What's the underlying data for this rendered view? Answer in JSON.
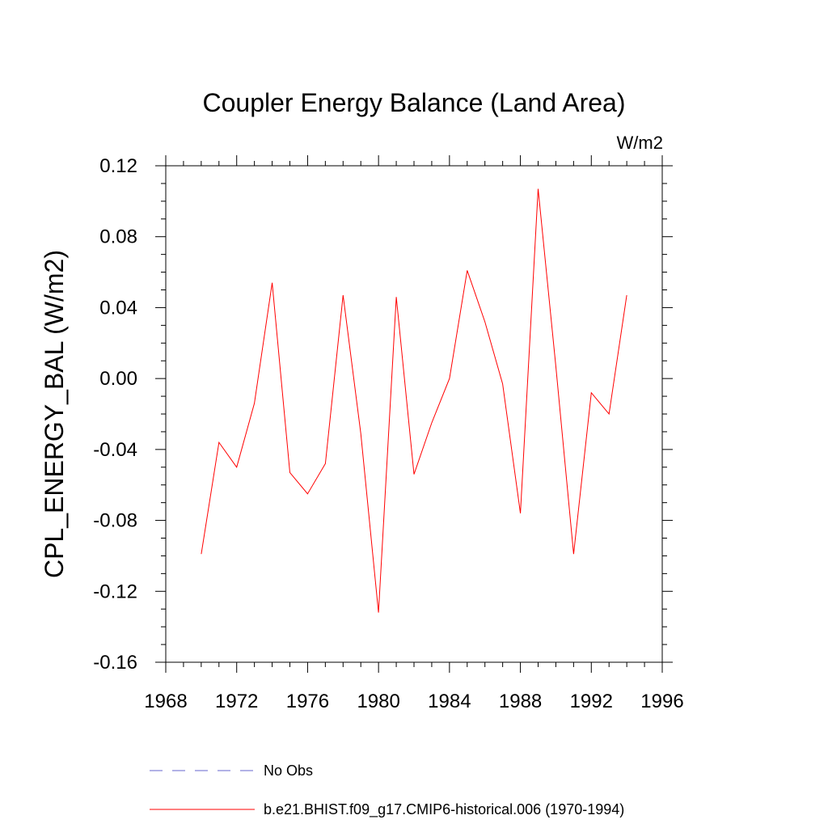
{
  "chart_data": {
    "type": "line",
    "title": "Coupler Energy Balance (Land Area)",
    "units_label": "W/m2",
    "ylabel": "CPL_ENERGY_BAL  (W/m2)",
    "xlabel": "",
    "xlim": [
      1968,
      1996
    ],
    "ylim": [
      -0.16,
      0.12
    ],
    "x_ticks": [
      1968,
      1972,
      1976,
      1980,
      1984,
      1988,
      1992,
      1996
    ],
    "x_tick_labels": [
      "1968",
      "1972",
      "1976",
      "1980",
      "1984",
      "1988",
      "1992",
      "1996"
    ],
    "y_ticks": [
      -0.16,
      -0.12,
      -0.08,
      -0.04,
      0.0,
      0.04,
      0.08,
      0.12
    ],
    "y_tick_labels": [
      "-0.16",
      "-0.12",
      "-0.08",
      "-0.04",
      "0.00",
      "0.04",
      "0.08",
      "0.12"
    ],
    "grid": false,
    "series": [
      {
        "name": "b.e21.BHIST.f09_g17.CMIP6-historical.006 (1970-1994)",
        "color": "#ff0000",
        "style": "solid",
        "x": [
          1970,
          1971,
          1972,
          1973,
          1974,
          1975,
          1976,
          1977,
          1978,
          1979,
          1980,
          1981,
          1982,
          1983,
          1984,
          1985,
          1986,
          1987,
          1988,
          1989,
          1990,
          1991,
          1992,
          1993,
          1994
        ],
        "y": [
          -0.099,
          -0.036,
          -0.05,
          -0.014,
          0.054,
          -0.053,
          -0.065,
          -0.048,
          0.047,
          -0.031,
          -0.132,
          0.046,
          -0.054,
          -0.025,
          0.0,
          0.061,
          0.032,
          -0.003,
          -0.076,
          0.107,
          0.007,
          -0.099,
          -0.008,
          -0.02,
          0.047
        ]
      }
    ],
    "legend": [
      {
        "label": "No Obs",
        "color": "#6666cc",
        "style": "dashed"
      },
      {
        "label": "b.e21.BHIST.f09_g17.CMIP6-historical.006 (1970-1994)",
        "color": "#ff0000",
        "style": "solid"
      }
    ],
    "legend_position": "bottom"
  }
}
